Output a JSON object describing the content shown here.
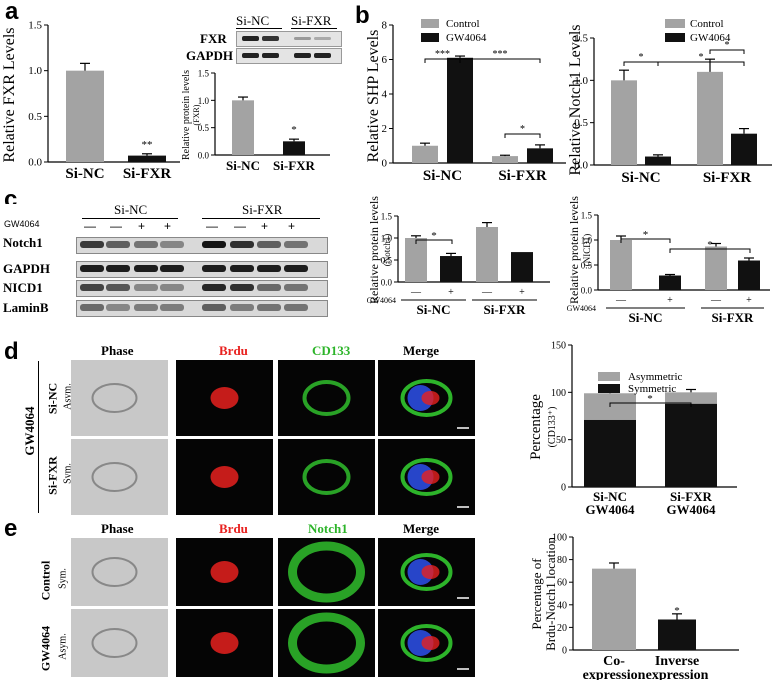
{
  "panels": {
    "a": "a",
    "b": "b",
    "c": "c",
    "d": "d",
    "e": "e"
  },
  "colors": {
    "gray": "#a3a3a3",
    "black": "#111111",
    "red": "#e8211f",
    "green": "#2db42a",
    "blue": "#2745c9"
  },
  "blot_a": {
    "rows": [
      "FXR",
      "GAPDH"
    ],
    "groups": [
      "Si-NC",
      "Si-FXR"
    ]
  },
  "blot_c": {
    "treatment_label": "GW4064",
    "treatment_signs": [
      "—",
      "—",
      "+",
      "+",
      "—",
      "—",
      "+",
      "+"
    ],
    "groups": [
      "Si-NC",
      "Si-FXR"
    ],
    "rows": [
      "Notch1",
      "GAPDH",
      "NICD1",
      "LaminB"
    ]
  },
  "micro_d": {
    "columns": [
      "Phase",
      "Brdu",
      "CD133",
      "Merge"
    ],
    "side_label": "GW4064",
    "rows": [
      {
        "label": "Si-NC",
        "sub": "Asym."
      },
      {
        "label": "Si-FXR",
        "sub": "Sym."
      }
    ]
  },
  "micro_e": {
    "columns": [
      "Phase",
      "Brdu",
      "Notch1",
      "Merge"
    ],
    "rows": [
      {
        "label": "Control",
        "sub": "Sym."
      },
      {
        "label": "GW4064",
        "sub": "Asym."
      }
    ]
  },
  "chart_data": [
    {
      "id": "a1",
      "type": "bar",
      "categories": [
        "Si-NC",
        "Si-FXR"
      ],
      "values": [
        1.0,
        0.07
      ],
      "errors": [
        0.08,
        0.02
      ],
      "ylabel": "Relative FXR Levels",
      "ylim": [
        0,
        1.5
      ],
      "yticks": [
        "0.0",
        "0.5",
        "1.0",
        "1.5"
      ],
      "annotations": [
        "**"
      ]
    },
    {
      "id": "a2",
      "type": "bar",
      "categories": [
        "Si-NC",
        "Si-FXR"
      ],
      "values": [
        1.0,
        0.25
      ],
      "errors": [
        0.06,
        0.04
      ],
      "ylabel": "Relative protein levels",
      "ylabel2": "(FXR)",
      "ylim": [
        0,
        1.5
      ],
      "yticks": [
        "0.0",
        "0.5",
        "1.0",
        "1.5"
      ],
      "annotations": [
        "*"
      ]
    },
    {
      "id": "b1",
      "type": "bar",
      "categories": [
        "Si-NC",
        "Si-FXR"
      ],
      "series": [
        {
          "name": "Control",
          "values": [
            1.0,
            0.4
          ],
          "errors": [
            0.15,
            0.05
          ]
        },
        {
          "name": "GW4064",
          "values": [
            6.1,
            0.85
          ],
          "errors": [
            0.1,
            0.2
          ]
        }
      ],
      "ylabel": "Relative  SHP  Levels",
      "ylim": [
        0,
        8
      ],
      "yticks": [
        "0",
        "2",
        "4",
        "6",
        "8"
      ],
      "legend": "top",
      "annotations": [
        "***",
        "***",
        "*"
      ]
    },
    {
      "id": "b2",
      "type": "bar",
      "categories": [
        "Si-NC",
        "Si-FXR"
      ],
      "series": [
        {
          "name": "Control",
          "values": [
            1.0,
            1.1
          ],
          "errors": [
            0.12,
            0.15
          ]
        },
        {
          "name": "GW4064",
          "values": [
            0.1,
            0.37
          ],
          "errors": [
            0.02,
            0.06
          ]
        }
      ],
      "ylabel": "Relative Notch1 Levels",
      "ylim": [
        0,
        1.5
      ],
      "yticks": [
        "0.0",
        "0.5",
        "1.0",
        "1.5"
      ],
      "legend": "top",
      "annotations": [
        "*",
        "*",
        "*"
      ]
    },
    {
      "id": "c1",
      "type": "bar",
      "categories": [
        "—",
        "+",
        "—",
        "+"
      ],
      "values": [
        1.0,
        0.59,
        1.25,
        0.68
      ],
      "errors": [
        0.05,
        0.06,
        0.1,
        0
      ],
      "colors": [
        "gray",
        "black",
        "gray",
        "black"
      ],
      "ylabel": "Relative protein levels",
      "ylabel2": "(Notch1)",
      "ylim": [
        0,
        1.5
      ],
      "yticks": [
        "0.0",
        "0.5",
        "1.0",
        "1.5"
      ],
      "treatment_label": "GW4064",
      "groups": [
        "Si-NC",
        "Si-FXR"
      ],
      "annotations": [
        "*"
      ]
    },
    {
      "id": "c2",
      "type": "bar",
      "categories": [
        "—",
        "+",
        "—",
        "+"
      ],
      "values": [
        1.0,
        0.29,
        0.87,
        0.59
      ],
      "errors": [
        0.08,
        0.02,
        0.06,
        0.05
      ],
      "colors": [
        "gray",
        "black",
        "gray",
        "black"
      ],
      "ylabel": "Relative protein levels",
      "ylabel2": "(NICD1)",
      "ylim": [
        0,
        1.5
      ],
      "yticks": [
        "0.0",
        "0.5",
        "1.0",
        "1.5"
      ],
      "treatment_label": "GW4064",
      "groups": [
        "Si-NC",
        "Si-FXR"
      ],
      "annotations": [
        "*",
        "*"
      ]
    },
    {
      "id": "d",
      "type": "bar",
      "stacked": true,
      "categories": [
        "Si-NC\nGW4064",
        "Si-FXR\nGW4064"
      ],
      "series": [
        {
          "name": "Asymmetric",
          "values": [
            28,
            12
          ]
        },
        {
          "name": "Symmetric",
          "values": [
            71,
            88
          ]
        }
      ],
      "errors": [
        2,
        3
      ],
      "ylabel": "Percentage",
      "ylabel2": "(CD133⁺)",
      "ylim": [
        0,
        150
      ],
      "yticks": [
        "0",
        "50",
        "100",
        "150"
      ],
      "legend": "top",
      "annotations": [
        "*"
      ]
    },
    {
      "id": "e",
      "type": "bar",
      "categories": [
        "Co-\nexpression",
        "Inverse\nexpression"
      ],
      "values": [
        72,
        27
      ],
      "errors": [
        5,
        5
      ],
      "colors": [
        "gray",
        "black"
      ],
      "ylabel": "Percentage of",
      "ylabel2": "Brdu-Notch1 location",
      "ylim": [
        0,
        100
      ],
      "yticks": [
        "0",
        "20",
        "40",
        "60",
        "80",
        "100"
      ],
      "annotations": [
        "*"
      ]
    }
  ]
}
